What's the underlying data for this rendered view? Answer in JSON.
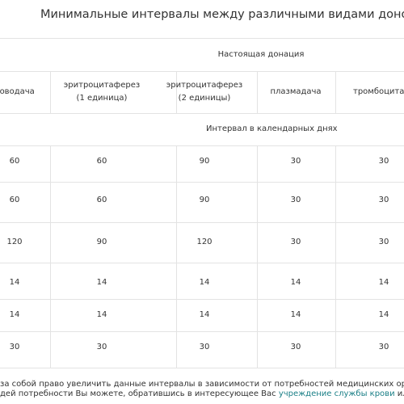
{
  "header": {
    "title": "Минимальные интервалы между различными видами донорства"
  },
  "table": {
    "group_header": "Настоящая донация",
    "columns": [
      "роводача",
      "эритроцитаферез\n(1 единица)",
      "эритроцитаферез\n(2 единицы)",
      "плазмадача",
      "тромбоцитаф"
    ],
    "unit_row": "Интервал в календарных днях",
    "rows": [
      [
        60,
        60,
        90,
        30,
        30
      ],
      [
        60,
        60,
        90,
        30,
        30
      ],
      [
        120,
        90,
        120,
        30,
        30
      ],
      [
        14,
        14,
        14,
        14,
        14
      ],
      [
        14,
        14,
        14,
        14,
        14
      ],
      [
        30,
        30,
        30,
        30,
        30
      ]
    ]
  },
  "footer": {
    "line1": "за собой право увеличить данные интервалы в зависимости от потребностей медицинских организаций в т",
    "line2_before": "дей потребности Вы можете, обратившись в интересующее Вас ",
    "link": "учреждение службы крови",
    "line2_after": " или воспольз"
  }
}
